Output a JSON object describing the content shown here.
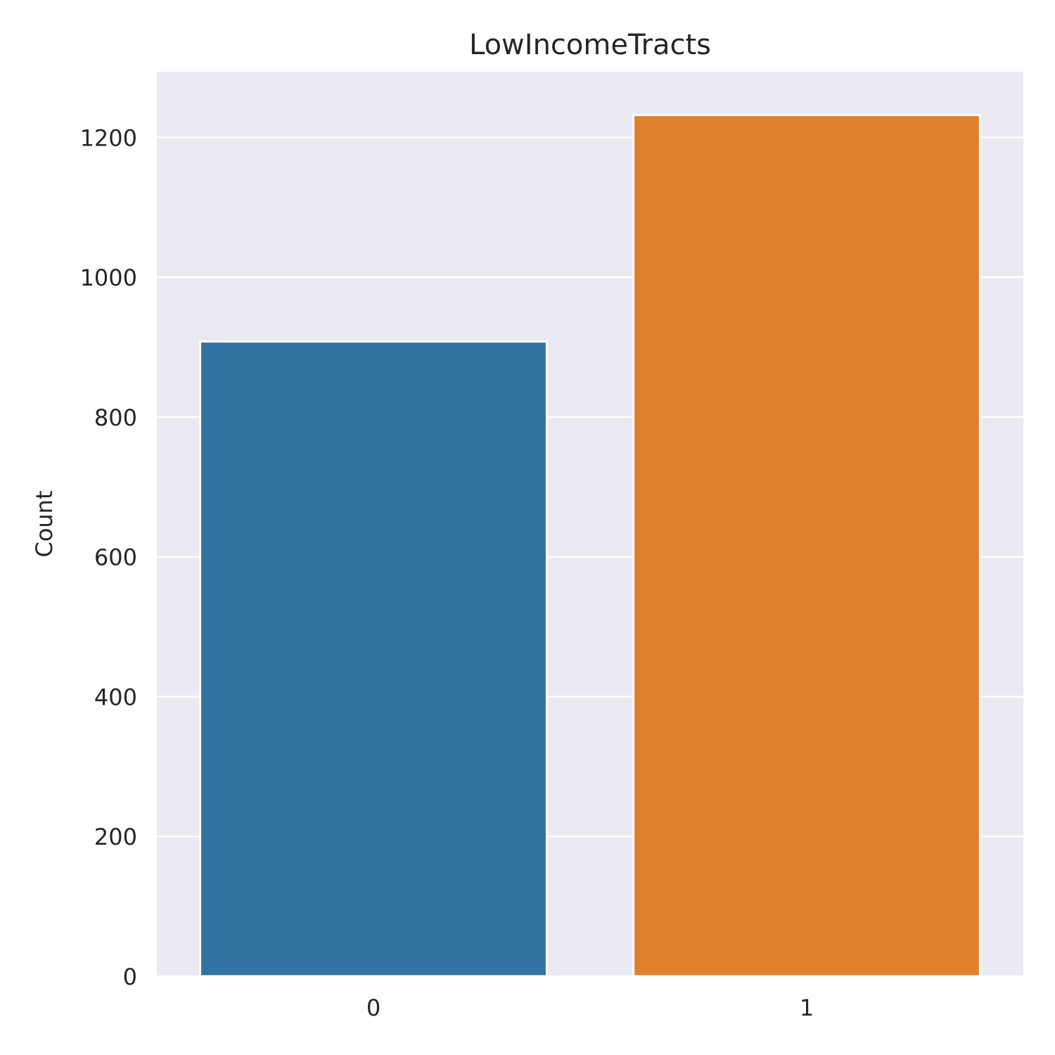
{
  "chart_data": {
    "type": "bar",
    "title": "LowIncomeTracts",
    "xlabel": "",
    "ylabel": "Count",
    "categories": [
      "0",
      "1"
    ],
    "values": [
      908,
      1232
    ],
    "ylim": [
      0,
      1294
    ],
    "yticks": [
      0,
      200,
      400,
      600,
      800,
      1000,
      1200
    ],
    "grid": true,
    "legend": "none",
    "colors": [
      "#3274a1",
      "#e1812c"
    ],
    "background": "#eaeaf2"
  }
}
